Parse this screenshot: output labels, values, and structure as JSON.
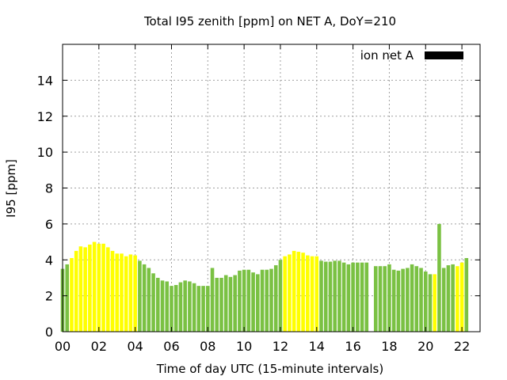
{
  "chart_data": {
    "type": "bar",
    "title": "Total I95 zenith [ppm] on NET A, DoY=210",
    "xlabel": "Time of day UTC (15-minute intervals)",
    "ylabel": "I95 [ppm]",
    "xlim": [
      0,
      23
    ],
    "ylim": [
      0,
      16
    ],
    "x_ticks": [
      "00",
      "02",
      "04",
      "06",
      "08",
      "10",
      "12",
      "14",
      "16",
      "18",
      "20",
      "22"
    ],
    "y_ticks": [
      "0",
      "2",
      "4",
      "6",
      "8",
      "10",
      "12",
      "14"
    ],
    "grid": true,
    "legend": {
      "label": "ion net A",
      "color": "#000000",
      "position": "top-right"
    },
    "colors": {
      "green": "#7ac143",
      "yellow": "#ffff00"
    },
    "interval_hours": 0.25,
    "values": [
      3.5,
      3.75,
      4.1,
      4.5,
      4.75,
      4.7,
      4.85,
      5.0,
      4.9,
      4.9,
      4.7,
      4.5,
      4.35,
      4.35,
      4.2,
      4.3,
      4.25,
      3.95,
      3.75,
      3.55,
      3.25,
      3.0,
      2.85,
      2.8,
      2.55,
      2.6,
      2.75,
      2.85,
      2.8,
      2.7,
      2.55,
      2.55,
      2.55,
      3.55,
      3.0,
      3.0,
      3.15,
      3.05,
      3.15,
      3.4,
      3.45,
      3.45,
      3.3,
      3.2,
      3.45,
      3.45,
      3.5,
      3.7,
      4.0,
      4.2,
      4.3,
      4.5,
      4.45,
      4.4,
      4.25,
      4.2,
      4.2,
      3.95,
      3.9,
      3.9,
      3.95,
      3.95,
      3.85,
      3.75,
      3.85,
      3.85,
      3.85,
      3.85,
      0,
      3.65,
      3.65,
      3.65,
      3.75,
      3.45,
      3.4,
      3.5,
      3.55,
      3.75,
      3.65,
      3.55,
      3.35,
      3.2,
      3.2,
      6.0,
      3.55,
      3.7,
      3.75,
      3.65,
      3.85,
      4.1
    ],
    "bar_colors": [
      "green",
      "green",
      "yellow",
      "yellow",
      "yellow",
      "yellow",
      "yellow",
      "yellow",
      "yellow",
      "yellow",
      "yellow",
      "yellow",
      "yellow",
      "yellow",
      "yellow",
      "yellow",
      "yellow",
      "green",
      "green",
      "green",
      "green",
      "green",
      "green",
      "green",
      "green",
      "green",
      "green",
      "green",
      "green",
      "green",
      "green",
      "green",
      "green",
      "green",
      "green",
      "green",
      "green",
      "green",
      "green",
      "green",
      "green",
      "green",
      "green",
      "green",
      "green",
      "green",
      "green",
      "green",
      "green",
      "yellow",
      "yellow",
      "yellow",
      "yellow",
      "yellow",
      "yellow",
      "yellow",
      "yellow",
      "green",
      "green",
      "green",
      "green",
      "green",
      "green",
      "green",
      "green",
      "green",
      "green",
      "green",
      "green",
      "green",
      "green",
      "green",
      "green",
      "green",
      "green",
      "green",
      "green",
      "green",
      "green",
      "green",
      "green",
      "green",
      "yellow",
      "green",
      "green",
      "green",
      "green",
      "yellow",
      "yellow"
    ]
  }
}
